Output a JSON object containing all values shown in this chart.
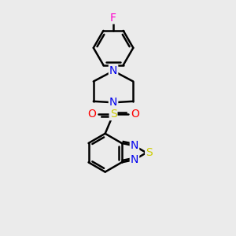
{
  "bg_color": "#ebebeb",
  "bond_color": "#000000",
  "bond_width": 1.8,
  "atom_colors": {
    "N": "#0000ee",
    "S_btd": "#cccc00",
    "S_sul": "#cccc00",
    "O": "#ff0000",
    "F": "#ff00cc",
    "C": "#000000"
  },
  "font_size": 10,
  "figsize": [
    3.0,
    3.0
  ],
  "dpi": 100
}
